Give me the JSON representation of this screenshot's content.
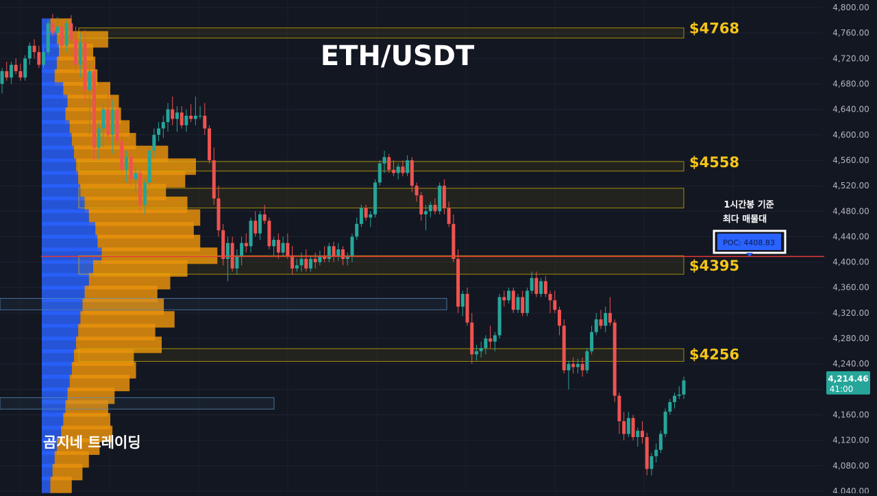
{
  "chart_data": {
    "type": "candlestick",
    "title": "ETH/USDT",
    "watermark": "곰지네 트레이딩",
    "ylim": [
      4040,
      4800
    ],
    "y_ticks": [
      "4,800.00",
      "4,760.00",
      "4,720.00",
      "4,680.00",
      "4,640.00",
      "4,600.00",
      "4,560.00",
      "4,520.00",
      "4,480.00",
      "4,440.00",
      "4,400.00",
      "4,360.00",
      "4,320.00",
      "4,280.00",
      "4,240.00",
      "4,200.00",
      "4,160.00",
      "4,120.00",
      "4,080.00",
      "4,040.00"
    ],
    "y_tick_values": [
      4800,
      4760,
      4720,
      4680,
      4640,
      4600,
      4560,
      4520,
      4480,
      4440,
      4400,
      4360,
      4320,
      4280,
      4240,
      4200,
      4160,
      4120,
      4080,
      4040
    ],
    "current_price": {
      "label": "4,214.46",
      "countdown": "41:00",
      "value": 4214.46
    },
    "poc": {
      "label": "POC: 4408.83",
      "value": 4408.83,
      "note_line1": "1시간봉 기준",
      "note_line2": "최다 매물대"
    },
    "level_labels": [
      {
        "text": "$4768",
        "value": 4768
      },
      {
        "text": "$4558",
        "value": 4558
      },
      {
        "text": "$4395",
        "value": 4395
      },
      {
        "text": "$4256",
        "value": 4256
      }
    ],
    "zones": [
      {
        "from": 4752,
        "to": 4768,
        "color": "#d4b106"
      },
      {
        "from": 4543,
        "to": 4558,
        "color": "#d4b106"
      },
      {
        "from": 4485,
        "to": 4516,
        "color": "#d4b106"
      },
      {
        "from": 4381,
        "to": 4410,
        "color": "#d4b106"
      },
      {
        "from": 4244,
        "to": 4264,
        "color": "#d4b106"
      },
      {
        "from": 4325,
        "to": 4343,
        "color": "#5b8fb9"
      },
      {
        "from": 4169,
        "to": 4187,
        "color": "#5b8fb9"
      }
    ],
    "volume_profile": {
      "row_prices": [
        4770,
        4750,
        4730,
        4710,
        4690,
        4670,
        4650,
        4630,
        4610,
        4590,
        4570,
        4550,
        4530,
        4510,
        4490,
        4470,
        4450,
        4430,
        4410,
        4390,
        4370,
        4350,
        4330,
        4310,
        4290,
        4270,
        4250,
        4230,
        4210,
        4190,
        4170,
        4150,
        4130,
        4110,
        4090,
        4070,
        4050
      ],
      "buy": [
        20,
        35,
        40,
        35,
        30,
        50,
        60,
        55,
        65,
        70,
        75,
        80,
        85,
        90,
        100,
        110,
        125,
        130,
        140,
        120,
        110,
        100,
        95,
        90,
        85,
        80,
        75,
        70,
        65,
        60,
        55,
        50,
        45,
        35,
        30,
        25,
        20
      ],
      "sell": [
        25,
        60,
        40,
        45,
        50,
        55,
        60,
        65,
        70,
        75,
        110,
        140,
        125,
        100,
        120,
        130,
        115,
        120,
        135,
        110,
        95,
        85,
        95,
        110,
        90,
        100,
        70,
        75,
        70,
        55,
        50,
        55,
        60,
        50,
        40,
        35,
        25
      ]
    },
    "candles": [
      [
        4680,
        4705,
        4665,
        4700
      ],
      [
        4700,
        4715,
        4685,
        4690
      ],
      [
        4690,
        4715,
        4680,
        4710
      ],
      [
        4710,
        4720,
        4695,
        4700
      ],
      [
        4700,
        4712,
        4685,
        4690
      ],
      [
        4690,
        4725,
        4685,
        4720
      ],
      [
        4720,
        4745,
        4710,
        4740
      ],
      [
        4740,
        4750,
        4720,
        4730
      ],
      [
        4730,
        4740,
        4705,
        4710
      ],
      [
        4710,
        4738,
        4705,
        4730
      ],
      [
        4730,
        4780,
        4725,
        4775
      ],
      [
        4775,
        4790,
        4755,
        4760
      ],
      [
        4760,
        4785,
        4745,
        4770
      ],
      [
        4770,
        4780,
        4735,
        4740
      ],
      [
        4740,
        4780,
        4730,
        4775
      ],
      [
        4775,
        4788,
        4745,
        4750
      ],
      [
        4750,
        4770,
        4700,
        4710
      ],
      [
        4710,
        4760,
        4690,
        4745
      ],
      [
        4745,
        4765,
        4650,
        4670
      ],
      [
        4670,
        4712,
        4600,
        4700
      ],
      [
        4700,
        4710,
        4560,
        4580
      ],
      [
        4580,
        4620,
        4560,
        4610
      ],
      [
        4610,
        4650,
        4580,
        4640
      ],
      [
        4640,
        4670,
        4590,
        4600
      ],
      [
        4600,
        4655,
        4570,
        4640
      ],
      [
        4640,
        4648,
        4585,
        4590
      ],
      [
        4590,
        4600,
        4540,
        4545
      ],
      [
        4545,
        4575,
        4525,
        4565
      ],
      [
        4565,
        4575,
        4520,
        4530
      ],
      [
        4530,
        4550,
        4510,
        4540
      ],
      [
        4540,
        4545,
        4480,
        4490
      ],
      [
        4490,
        4530,
        4475,
        4525
      ],
      [
        4525,
        4580,
        4520,
        4575
      ],
      [
        4575,
        4610,
        4565,
        4600
      ],
      [
        4600,
        4620,
        4590,
        4610
      ],
      [
        4610,
        4630,
        4595,
        4620
      ],
      [
        4620,
        4650,
        4605,
        4640
      ],
      [
        4640,
        4660,
        4615,
        4625
      ],
      [
        4625,
        4645,
        4605,
        4635
      ],
      [
        4635,
        4645,
        4610,
        4615
      ],
      [
        4615,
        4640,
        4605,
        4630
      ],
      [
        4630,
        4648,
        4620,
        4625
      ],
      [
        4625,
        4660,
        4615,
        4630
      ],
      [
        4630,
        4645,
        4625,
        4630
      ],
      [
        4630,
        4650,
        4600,
        4610
      ],
      [
        4610,
        4615,
        4555,
        4560
      ],
      [
        4560,
        4580,
        4490,
        4500
      ],
      [
        4500,
        4520,
        4440,
        4450
      ],
      [
        4450,
        4460,
        4395,
        4405
      ],
      [
        4405,
        4440,
        4370,
        4430
      ],
      [
        4430,
        4440,
        4385,
        4390
      ],
      [
        4390,
        4420,
        4380,
        4410
      ],
      [
        4410,
        4440,
        4395,
        4430
      ],
      [
        4430,
        4445,
        4415,
        4425
      ],
      [
        4425,
        4470,
        4415,
        4465
      ],
      [
        4465,
        4480,
        4440,
        4445
      ],
      [
        4445,
        4480,
        4435,
        4475
      ],
      [
        4475,
        4490,
        4460,
        4465
      ],
      [
        4465,
        4470,
        4420,
        4425
      ],
      [
        4425,
        4440,
        4410,
        4435
      ],
      [
        4435,
        4445,
        4405,
        4415
      ],
      [
        4415,
        4440,
        4410,
        4430
      ],
      [
        4430,
        4445,
        4405,
        4410
      ],
      [
        4410,
        4425,
        4380,
        4390
      ],
      [
        4390,
        4405,
        4385,
        4395
      ],
      [
        4395,
        4415,
        4385,
        4405
      ],
      [
        4405,
        4420,
        4385,
        4390
      ],
      [
        4390,
        4410,
        4385,
        4405
      ],
      [
        4405,
        4415,
        4390,
        4400
      ],
      [
        4400,
        4418,
        4395,
        4410
      ],
      [
        4410,
        4425,
        4400,
        4405
      ],
      [
        4405,
        4430,
        4400,
        4425
      ],
      [
        4425,
        4432,
        4400,
        4410
      ],
      [
        4410,
        4430,
        4402,
        4420
      ],
      [
        4420,
        4425,
        4395,
        4405
      ],
      [
        4405,
        4415,
        4395,
        4410
      ],
      [
        4410,
        4445,
        4400,
        4440
      ],
      [
        4440,
        4470,
        4435,
        4460
      ],
      [
        4460,
        4490,
        4455,
        4485
      ],
      [
        4485,
        4490,
        4465,
        4470
      ],
      [
        4470,
        4480,
        4455,
        4475
      ],
      [
        4475,
        4530,
        4470,
        4525
      ],
      [
        4525,
        4560,
        4520,
        4555
      ],
      [
        4555,
        4575,
        4540,
        4565
      ],
      [
        4565,
        4570,
        4540,
        4545
      ],
      [
        4545,
        4560,
        4535,
        4540
      ],
      [
        4540,
        4555,
        4530,
        4550
      ],
      [
        4550,
        4560,
        4535,
        4540
      ],
      [
        4540,
        4568,
        4535,
        4560
      ],
      [
        4560,
        4565,
        4510,
        4520
      ],
      [
        4520,
        4525,
        4495,
        4505
      ],
      [
        4505,
        4510,
        4465,
        4475
      ],
      [
        4475,
        4490,
        4450,
        4480
      ],
      [
        4480,
        4495,
        4470,
        4490
      ],
      [
        4490,
        4500,
        4475,
        4480
      ],
      [
        4480,
        4525,
        4475,
        4520
      ],
      [
        4520,
        4530,
        4475,
        4485
      ],
      [
        4485,
        4495,
        4455,
        4460
      ],
      [
        4460,
        4475,
        4400,
        4405
      ],
      [
        4405,
        4420,
        4320,
        4330
      ],
      [
        4330,
        4355,
        4315,
        4350
      ],
      [
        4350,
        4360,
        4300,
        4305
      ],
      [
        4305,
        4320,
        4240,
        4255
      ],
      [
        4255,
        4270,
        4245,
        4260
      ],
      [
        4260,
        4275,
        4250,
        4265
      ],
      [
        4265,
        4285,
        4255,
        4280
      ],
      [
        4280,
        4300,
        4265,
        4275
      ],
      [
        4275,
        4290,
        4260,
        4285
      ],
      [
        4285,
        4350,
        4280,
        4345
      ],
      [
        4345,
        4355,
        4330,
        4340
      ],
      [
        4340,
        4360,
        4335,
        4355
      ],
      [
        4355,
        4360,
        4320,
        4325
      ],
      [
        4325,
        4350,
        4320,
        4345
      ],
      [
        4345,
        4355,
        4315,
        4320
      ],
      [
        4320,
        4360,
        4315,
        4355
      ],
      [
        4355,
        4385,
        4350,
        4375
      ],
      [
        4375,
        4385,
        4345,
        4350
      ],
      [
        4350,
        4375,
        4345,
        4370
      ],
      [
        4370,
        4378,
        4345,
        4350
      ],
      [
        4350,
        4355,
        4320,
        4340
      ],
      [
        4340,
        4355,
        4320,
        4325
      ],
      [
        4325,
        4330,
        4285,
        4300
      ],
      [
        4300,
        4310,
        4225,
        4230
      ],
      [
        4230,
        4245,
        4200,
        4240
      ],
      [
        4240,
        4250,
        4225,
        4235
      ],
      [
        4235,
        4248,
        4225,
        4240
      ],
      [
        4240,
        4250,
        4220,
        4230
      ],
      [
        4230,
        4265,
        4225,
        4260
      ],
      [
        4260,
        4300,
        4255,
        4290
      ],
      [
        4290,
        4320,
        4285,
        4310
      ],
      [
        4310,
        4325,
        4295,
        4300
      ],
      [
        4300,
        4330,
        4290,
        4320
      ],
      [
        4320,
        4345,
        4300,
        4305
      ],
      [
        4305,
        4310,
        4180,
        4190
      ],
      [
        4190,
        4195,
        4130,
        4150
      ],
      [
        4150,
        4165,
        4120,
        4130
      ],
      [
        4130,
        4165,
        4125,
        4155
      ],
      [
        4155,
        4160,
        4120,
        4125
      ],
      [
        4125,
        4140,
        4110,
        4135
      ],
      [
        4135,
        4150,
        4115,
        4125
      ],
      [
        4125,
        4132,
        4065,
        4075
      ],
      [
        4075,
        4100,
        4065,
        4095
      ],
      [
        4095,
        4115,
        4085,
        4105
      ],
      [
        4105,
        4135,
        4100,
        4130
      ],
      [
        4130,
        4170,
        4125,
        4165
      ],
      [
        4165,
        4185,
        4160,
        4180
      ],
      [
        4180,
        4195,
        4170,
        4190
      ],
      [
        4190,
        4205,
        4185,
        4192
      ],
      [
        4192,
        4220,
        4185,
        4214
      ]
    ]
  }
}
